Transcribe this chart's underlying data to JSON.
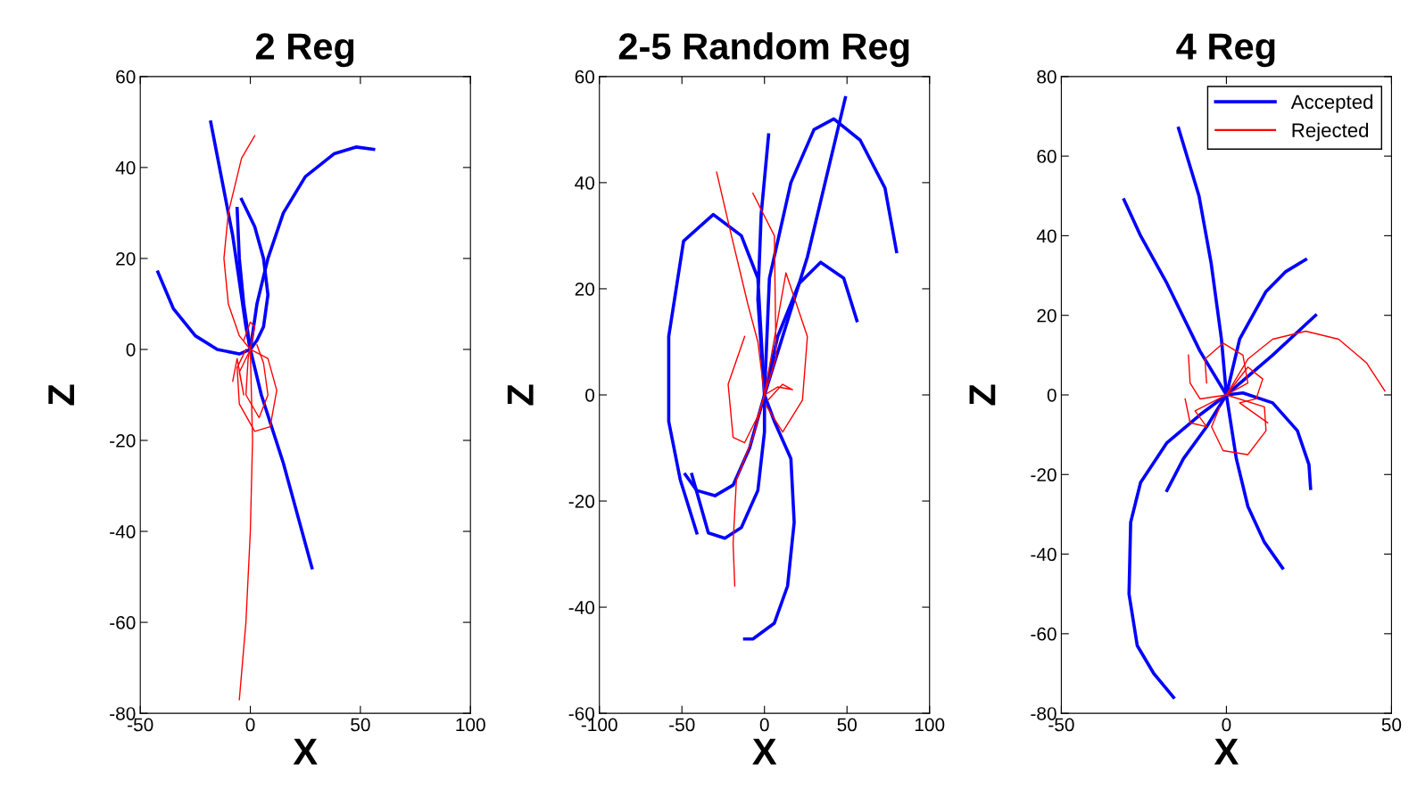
{
  "chart_data": [
    {
      "type": "line",
      "title": "2 Reg",
      "xlabel": "X",
      "ylabel": "Z",
      "xlim": [
        -50,
        100
      ],
      "ylim": [
        -80,
        60
      ],
      "xticks": [
        -50,
        0,
        50,
        100
      ],
      "yticks": [
        -80,
        -60,
        -40,
        -20,
        0,
        20,
        40,
        60
      ],
      "grid": false,
      "legend": false,
      "marker": "none",
      "line_style": "solid",
      "series": [
        {
          "color": "#0000ff",
          "x": [
            -18,
            -8,
            -2,
            0,
            5,
            15,
            28
          ],
          "values": [
            50,
            25,
            5,
            0,
            -10,
            -25,
            -48
          ]
        },
        {
          "color": "#0000ff",
          "x": [
            -42,
            -35,
            -25,
            -15,
            -5,
            0,
            3,
            8,
            15,
            25,
            38,
            48,
            56
          ],
          "values": [
            17,
            9,
            3,
            0,
            -1,
            0,
            10,
            20,
            30,
            38,
            43,
            44.5,
            44
          ]
        },
        {
          "color": "#0000ff",
          "x": [
            -6,
            -5,
            -3,
            0,
            3,
            6,
            8,
            6,
            2,
            -4
          ],
          "values": [
            31,
            20,
            10,
            0,
            2,
            5,
            12,
            20,
            27,
            33
          ]
        },
        {
          "color": "#ff0000",
          "x": [
            2,
            -4,
            -10,
            -12,
            -10,
            -5,
            0,
            1,
            0,
            -2,
            -5
          ],
          "values": [
            47,
            42,
            30,
            20,
            10,
            3,
            0,
            -20,
            -40,
            -60,
            -77
          ]
        },
        {
          "color": "#ff0000",
          "x": [
            -8,
            -6,
            -3,
            -5,
            0,
            8,
            12,
            9,
            2,
            -5,
            -6,
            -2
          ],
          "values": [
            -7,
            -2,
            -10,
            -5,
            0,
            -2,
            -9,
            -17,
            -18,
            -12,
            -4,
            0
          ]
        },
        {
          "color": "#ff0000",
          "x": [
            3,
            6,
            8,
            4,
            -2,
            -1,
            2,
            0,
            -3
          ],
          "values": [
            1,
            -3,
            -10,
            -15,
            -10,
            -2,
            5,
            6,
            2
          ]
        }
      ]
    },
    {
      "type": "line",
      "title": "2-5 Random Reg",
      "xlabel": "X",
      "ylabel": "Z",
      "xlim": [
        -100,
        100
      ],
      "ylim": [
        -60,
        60
      ],
      "xticks": [
        -100,
        -50,
        0,
        50,
        100
      ],
      "yticks": [
        -60,
        -40,
        -20,
        0,
        20,
        40,
        60
      ],
      "grid": false,
      "legend": false,
      "marker": "none",
      "line_style": "solid",
      "series": [
        {
          "color": "#0000ff",
          "x": [
            -41,
            -51,
            -58,
            -58,
            -49,
            -31,
            -14,
            -4,
            0,
            -4,
            -2,
            2.5
          ],
          "values": [
            -26,
            -16,
            -5,
            11,
            29,
            34,
            30,
            22,
            0,
            18,
            34,
            49
          ]
        },
        {
          "color": "#0000ff",
          "x": [
            -48,
            -41,
            -30,
            -19,
            -9,
            0,
            26,
            49
          ],
          "values": [
            -15,
            -18,
            -19,
            -17,
            -10,
            0,
            26,
            56
          ]
        },
        {
          "color": "#0000ff",
          "x": [
            -44,
            -34,
            -24,
            -14,
            -4,
            0,
            0,
            3,
            16,
            30,
            42,
            58,
            73,
            80
          ],
          "values": [
            -15,
            -26,
            -27,
            -25,
            -18,
            -7,
            0,
            22,
            40,
            50,
            52,
            48,
            39,
            27
          ]
        },
        {
          "color": "#0000ff",
          "x": [
            -12,
            -7,
            6,
            14,
            18,
            16,
            6,
            0,
            8,
            21,
            34,
            48,
            56
          ],
          "values": [
            -46,
            -46,
            -43,
            -36,
            -24,
            -12,
            -5,
            0,
            11,
            21,
            25,
            22,
            14
          ]
        },
        {
          "color": "#ff0000",
          "x": [
            -29,
            -20,
            -10,
            -4,
            0,
            -7,
            -17,
            -19,
            -18
          ],
          "values": [
            42,
            30,
            17,
            10,
            0,
            -8,
            -16,
            -28,
            -36
          ]
        },
        {
          "color": "#ff0000",
          "x": [
            -7,
            6,
            7,
            0,
            13,
            26,
            23,
            11,
            1
          ],
          "values": [
            38,
            30,
            7,
            0,
            23,
            11,
            -1,
            -7,
            -2
          ]
        },
        {
          "color": "#ff0000",
          "x": [
            -12,
            -22,
            -19,
            -12,
            -4,
            0,
            8,
            17,
            11,
            2
          ],
          "values": [
            11,
            2,
            -8,
            -9,
            -4,
            0,
            1.5,
            1,
            2,
            -1
          ]
        }
      ]
    },
    {
      "type": "line",
      "title": "4 Reg",
      "xlabel": "X",
      "ylabel": "Z",
      "xlim": [
        -50,
        50
      ],
      "ylim": [
        -80,
        80
      ],
      "xticks": [
        -50,
        0,
        50
      ],
      "yticks": [
        -80,
        -60,
        -40,
        -20,
        0,
        20,
        40,
        60,
        80
      ],
      "grid": false,
      "legend": "top right",
      "marker": "none",
      "line_style": "solid",
      "series": [
        {
          "name": "Accepted",
          "color": "#0000ff",
          "x": [
            -14.5,
            -8.3,
            -4.6,
            -1.5,
            0,
            3,
            6.5,
            11.5,
            17
          ],
          "values": [
            67,
            50,
            33,
            14,
            0,
            -16,
            -28,
            -37,
            -43.5
          ]
        },
        {
          "color": "#0000ff",
          "x": [
            -31,
            -26,
            -18,
            -8,
            0,
            4,
            12,
            18,
            24
          ],
          "values": [
            49,
            40,
            28,
            11,
            0,
            14,
            26,
            31,
            34
          ]
        },
        {
          "color": "#0000ff",
          "x": [
            -16,
            -22,
            -27,
            -29.5,
            -29,
            -26,
            -18,
            -8,
            0,
            14,
            27
          ],
          "values": [
            -76,
            -70,
            -63,
            -50,
            -32,
            -22,
            -12,
            -5,
            0,
            10,
            20
          ]
        },
        {
          "color": "#0000ff",
          "x": [
            -18,
            -13,
            -6,
            0,
            5,
            14,
            21.5,
            25,
            25.5
          ],
          "values": [
            -24,
            -16,
            -8,
            0,
            0.5,
            -2,
            -9,
            -17.5,
            -23.5
          ]
        },
        {
          "name": "Rejected",
          "color": "#ff0000",
          "x": [
            48,
            42.5,
            34,
            24,
            14,
            6.5,
            0,
            11.5,
            12,
            6.5,
            -1,
            -4.5,
            -2
          ],
          "values": [
            1,
            8,
            14,
            16,
            14,
            9,
            0,
            -3,
            -9,
            -15,
            -14,
            -8,
            -3
          ]
        },
        {
          "color": "#ff0000",
          "x": [
            -11.5,
            -11,
            -8,
            0,
            6.5,
            5,
            -1,
            -6.5,
            -6
          ],
          "values": [
            10,
            3,
            -1,
            0,
            3,
            10,
            13,
            9,
            3
          ]
        },
        {
          "color": "#ff0000",
          "x": [
            -12.5,
            -11,
            -6,
            -9.5,
            0,
            6.5,
            11,
            9,
            4,
            12.5
          ],
          "values": [
            -1,
            -7,
            -8,
            -4,
            0,
            7,
            4,
            -1,
            -2,
            -7
          ]
        }
      ]
    }
  ]
}
